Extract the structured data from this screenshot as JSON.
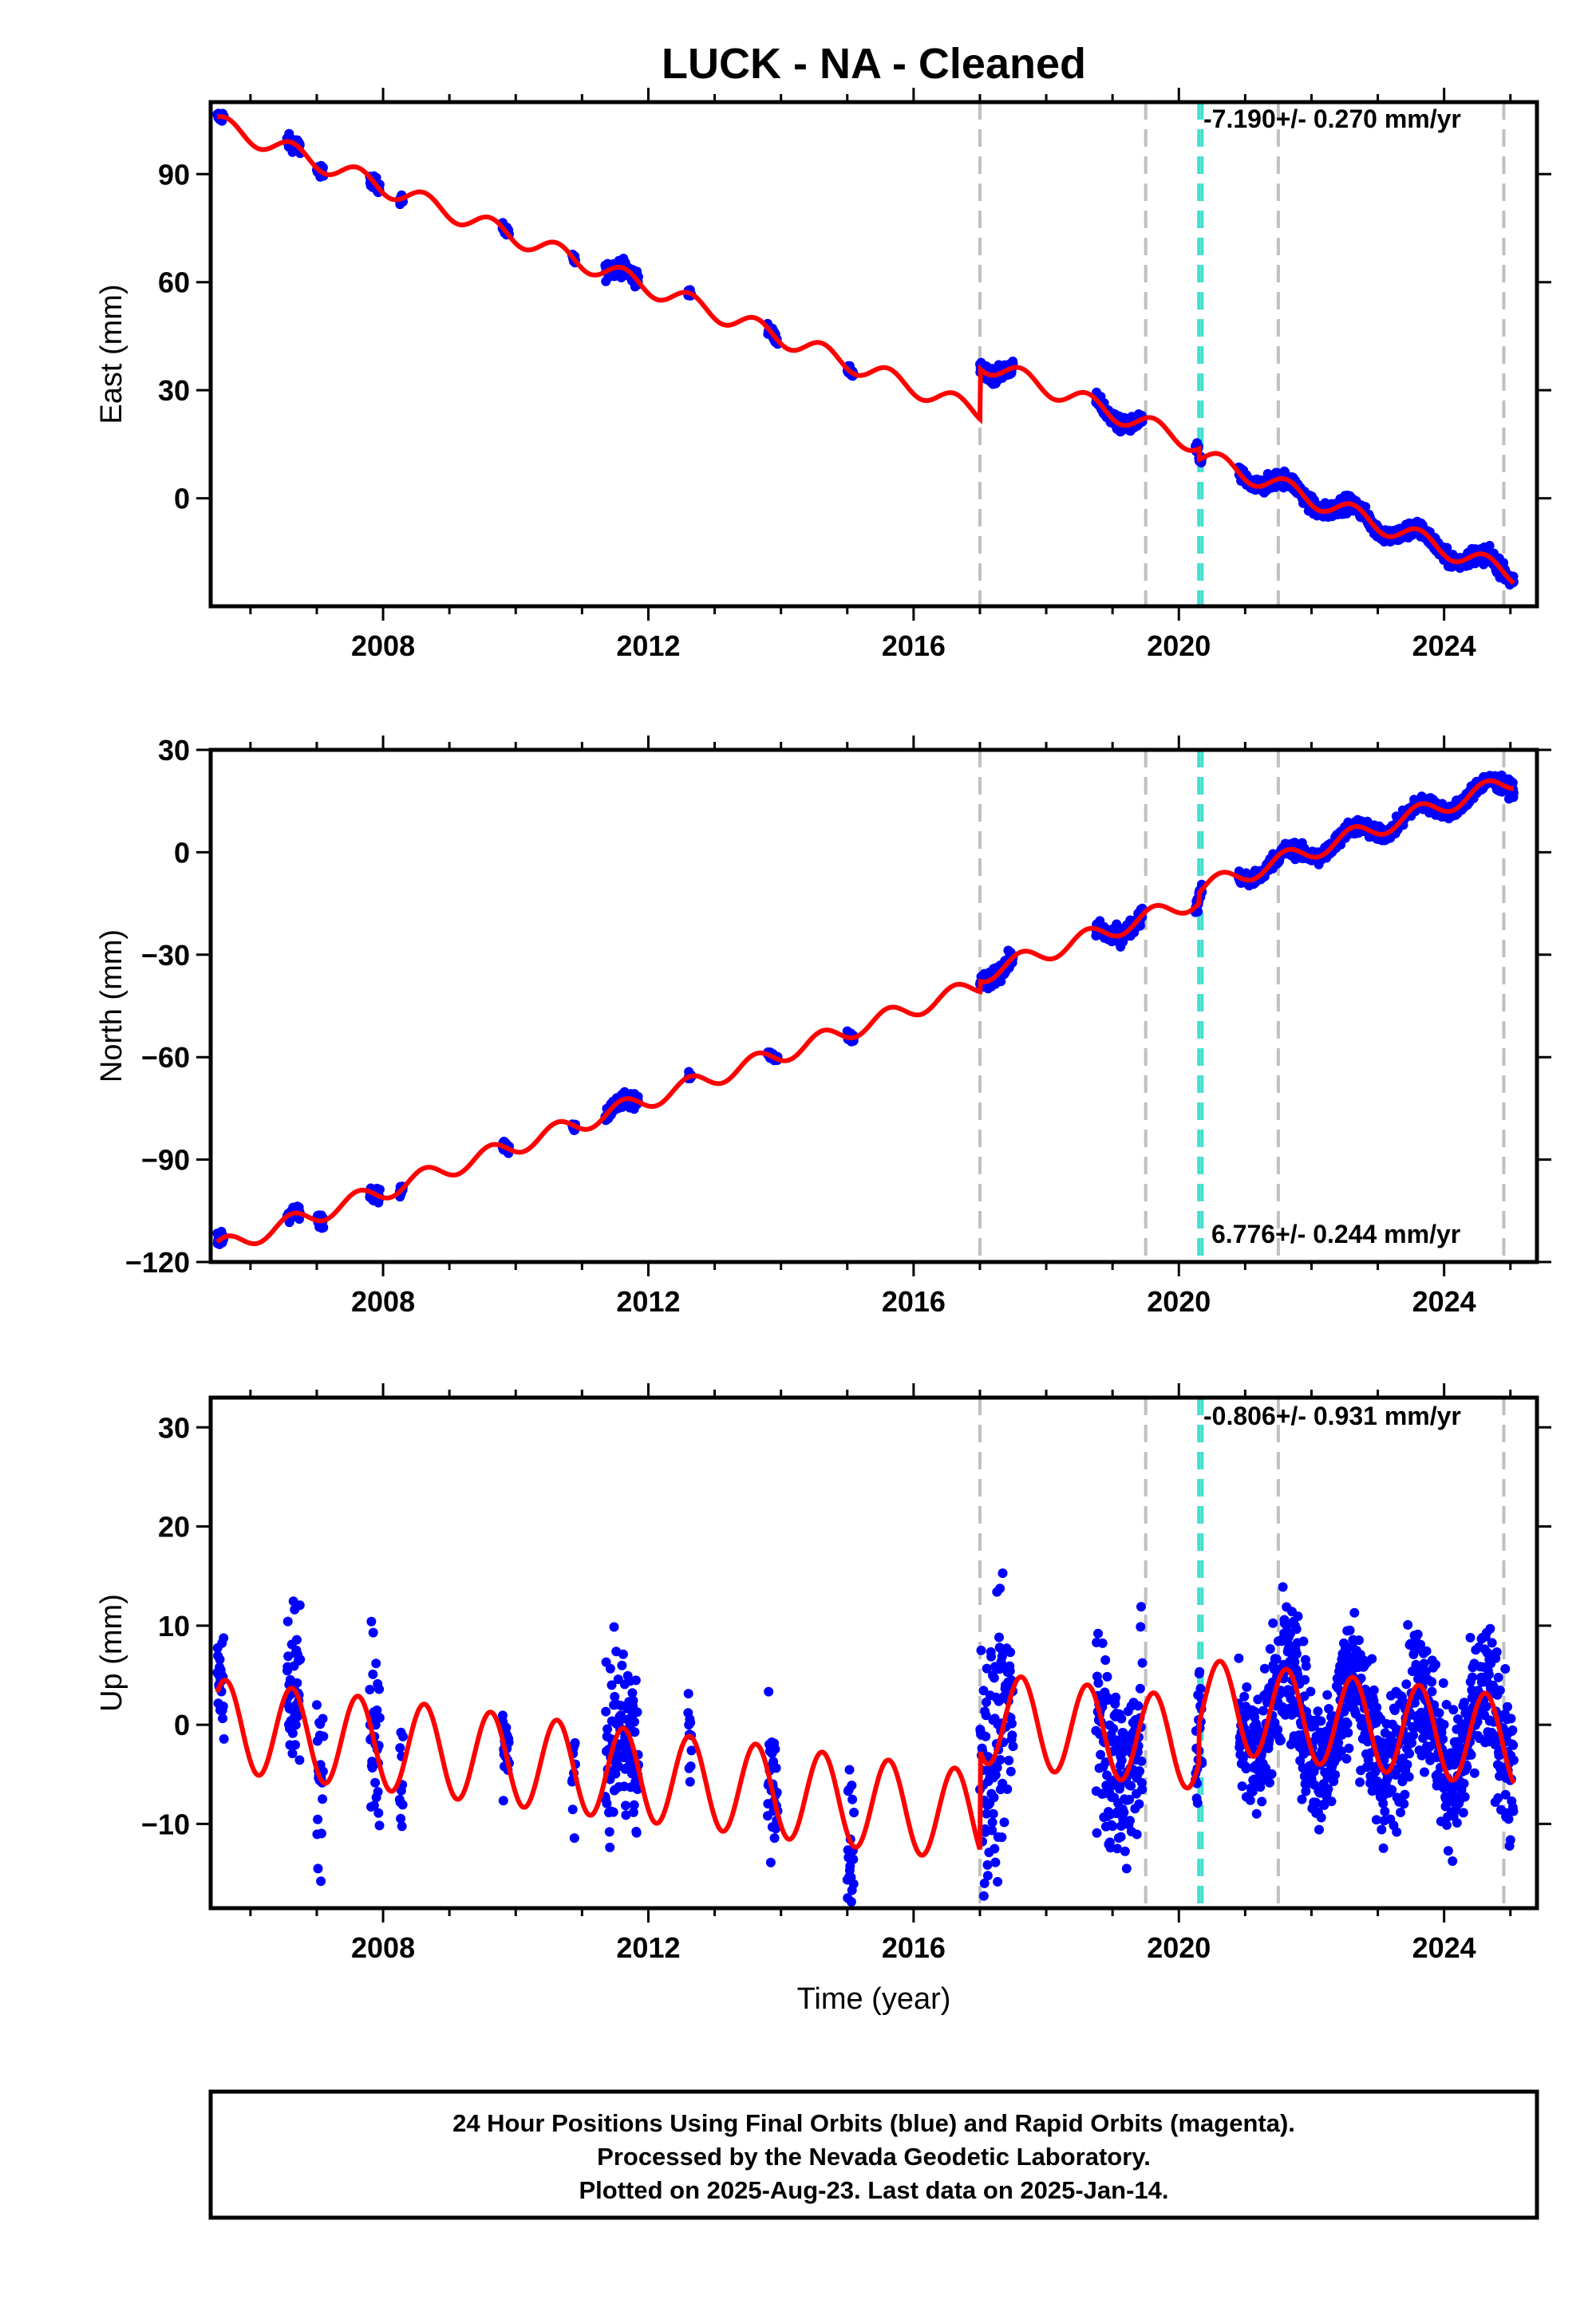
{
  "title": "LUCK  - NA - Cleaned",
  "colors": {
    "final_orbits": "#0000ff",
    "model": "#ff0000",
    "offset_equipment": "#c0c0c0",
    "offset_other": "#40e0d0",
    "frame": "#000000"
  },
  "x_ticks": [
    "2008",
    "2012",
    "2016",
    "2020",
    "2024"
  ],
  "xlabel": "Time (year)",
  "footer": [
    "24 Hour Positions Using Final Orbits (blue) and Rapid Orbits (magenta).",
    "Processed by the Nevada Geodetic Laboratory.",
    "Plotted on 2025-Aug-23. Last data on 2025-Jan-14."
  ],
  "chart_data": [
    {
      "type": "scatter",
      "component": "east",
      "ylabel": "East (mm)",
      "xlim": [
        2005.4,
        2025.4
      ],
      "ylim": [
        -30,
        110
      ],
      "y_ticks": [
        "90",
        "60",
        "30",
        "0"
      ],
      "rate_label": "-7.190+/- 0.270 mm/yr",
      "rate_value": -7.19,
      "rate_sigma": 0.27,
      "offset_times_gray": [
        2017.0,
        2019.5,
        2021.5,
        2024.9
      ],
      "offset_times_cyan": [
        2020.3,
        2020.35
      ],
      "model_params": {
        "t0": 2005.5,
        "y0": 104,
        "rate": -6.97,
        "amplitude": 2.6,
        "jumps": [
          {
            "t": 2017.0,
            "dy": 14
          },
          {
            "t": 2020.3,
            "dy": -3
          }
        ]
      },
      "data_segments": [
        {
          "t_start": 2005.5,
          "t_end": 2005.6,
          "spread": 1.5
        },
        {
          "t_start": 2006.55,
          "t_end": 2006.75,
          "spread": 2.0
        },
        {
          "t_start": 2007.0,
          "t_end": 2007.1,
          "spread": 1.5
        },
        {
          "t_start": 2007.8,
          "t_end": 2007.95,
          "spread": 2.0
        },
        {
          "t_start": 2008.25,
          "t_end": 2008.3,
          "spread": 1.5
        },
        {
          "t_start": 2009.8,
          "t_end": 2009.9,
          "spread": 1.5
        },
        {
          "t_start": 2010.85,
          "t_end": 2010.9,
          "spread": 1.5
        },
        {
          "t_start": 2011.35,
          "t_end": 2011.85,
          "spread": 2.2
        },
        {
          "t_start": 2012.6,
          "t_end": 2012.65,
          "spread": 1.2
        },
        {
          "t_start": 2013.8,
          "t_end": 2013.95,
          "spread": 1.5
        },
        {
          "t_start": 2015.0,
          "t_end": 2015.1,
          "spread": 1.2
        },
        {
          "t_start": 2017.0,
          "t_end": 2017.5,
          "spread": 2.0
        },
        {
          "t_start": 2018.75,
          "t_end": 2019.45,
          "spread": 2.0
        },
        {
          "t_start": 2020.25,
          "t_end": 2020.35,
          "spread": 1.5
        },
        {
          "t_start": 2020.9,
          "t_end": 2025.05,
          "spread": 2.2
        }
      ]
    },
    {
      "type": "scatter",
      "component": "north",
      "ylabel": "North (mm)",
      "xlim": [
        2005.4,
        2025.4
      ],
      "ylim": [
        -120,
        30
      ],
      "y_ticks": [
        "30",
        "0",
        "−30",
        "−60",
        "−90",
        "−120"
      ],
      "rate_label": "6.776+/- 0.244 mm/yr",
      "rate_value": 6.776,
      "rate_sigma": 0.244,
      "offset_times_gray": [
        2017.0,
        2019.5,
        2021.5,
        2024.9
      ],
      "offset_times_cyan": [
        2020.3,
        2020.35
      ],
      "model_params": {
        "t0": 2005.5,
        "y0": -116,
        "rate": 6.7,
        "amplitude": 2.6,
        "jumps": [
          {
            "t": 2017.0,
            "dy": 3
          },
          {
            "t": 2020.3,
            "dy": 3
          }
        ]
      },
      "data_segments": [
        {
          "t_start": 2005.5,
          "t_end": 2005.6,
          "spread": 2.5
        },
        {
          "t_start": 2006.55,
          "t_end": 2006.75,
          "spread": 2.0
        },
        {
          "t_start": 2007.0,
          "t_end": 2007.1,
          "spread": 2.0
        },
        {
          "t_start": 2007.8,
          "t_end": 2007.95,
          "spread": 2.0
        },
        {
          "t_start": 2008.25,
          "t_end": 2008.3,
          "spread": 1.5
        },
        {
          "t_start": 2009.8,
          "t_end": 2009.9,
          "spread": 1.5
        },
        {
          "t_start": 2010.85,
          "t_end": 2010.9,
          "spread": 1.5
        },
        {
          "t_start": 2011.35,
          "t_end": 2011.85,
          "spread": 2.2
        },
        {
          "t_start": 2012.6,
          "t_end": 2012.65,
          "spread": 1.5
        },
        {
          "t_start": 2013.8,
          "t_end": 2013.95,
          "spread": 1.5
        },
        {
          "t_start": 2015.0,
          "t_end": 2015.1,
          "spread": 1.5
        },
        {
          "t_start": 2017.0,
          "t_end": 2017.5,
          "spread": 2.5
        },
        {
          "t_start": 2018.75,
          "t_end": 2019.45,
          "spread": 2.5
        },
        {
          "t_start": 2020.25,
          "t_end": 2020.35,
          "spread": 2.0
        },
        {
          "t_start": 2020.9,
          "t_end": 2025.05,
          "spread": 2.2
        }
      ]
    },
    {
      "type": "scatter",
      "component": "up",
      "ylabel": "Up (mm)",
      "xlim": [
        2005.4,
        2025.4
      ],
      "ylim": [
        -18.5,
        33
      ],
      "y_ticks": [
        "30",
        "20",
        "10",
        "0",
        "−10"
      ],
      "rate_label": "-0.806+/- 0.931 mm/yr",
      "rate_value": -0.806,
      "rate_sigma": 0.931,
      "offset_times_gray": [
        2017.0,
        2019.5,
        2021.5,
        2024.9
      ],
      "offset_times_cyan": [
        2020.3,
        2020.35
      ],
      "model_params": {
        "t0": 2005.5,
        "y0": 0,
        "rate": -0.806,
        "amplitude": 4.6,
        "jumps": [
          {
            "t": 2017.0,
            "dy": 10
          },
          {
            "t": 2020.3,
            "dy": 4
          }
        ]
      },
      "data_segments": [
        {
          "t_start": 2005.5,
          "t_end": 2005.6,
          "spread": 6
        },
        {
          "t_start": 2006.55,
          "t_end": 2006.75,
          "spread": 8
        },
        {
          "t_start": 2007.0,
          "t_end": 2007.1,
          "spread": 10
        },
        {
          "t_start": 2007.8,
          "t_end": 2007.95,
          "spread": 10
        },
        {
          "t_start": 2008.25,
          "t_end": 2008.3,
          "spread": 5
        },
        {
          "t_start": 2009.8,
          "t_end": 2009.9,
          "spread": 6
        },
        {
          "t_start": 2010.85,
          "t_end": 2010.9,
          "spread": 6
        },
        {
          "t_start": 2011.35,
          "t_end": 2011.85,
          "spread": 8
        },
        {
          "t_start": 2012.6,
          "t_end": 2012.65,
          "spread": 5
        },
        {
          "t_start": 2013.8,
          "t_end": 2013.95,
          "spread": 8
        },
        {
          "t_start": 2015.0,
          "t_end": 2015.1,
          "spread": 8
        },
        {
          "t_start": 2017.0,
          "t_end": 2017.5,
          "spread": 12
        },
        {
          "t_start": 2018.75,
          "t_end": 2019.45,
          "spread": 10
        },
        {
          "t_start": 2020.25,
          "t_end": 2020.35,
          "spread": 8
        },
        {
          "t_start": 2020.9,
          "t_end": 2025.05,
          "spread": 7
        }
      ]
    }
  ]
}
